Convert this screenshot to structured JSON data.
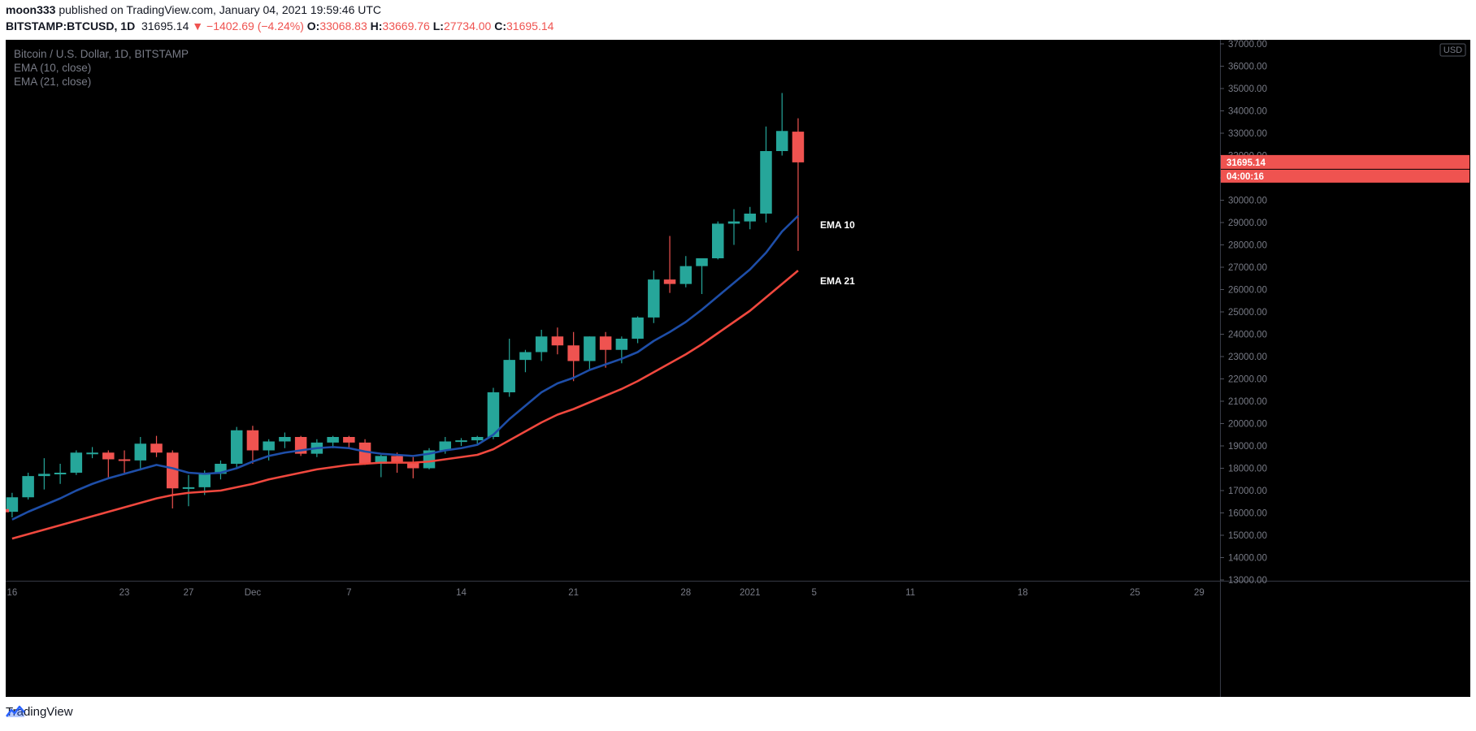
{
  "header": {
    "author": "moon333",
    "published_text": "published on TradingView.com, January 04, 2021 19:59:46 UTC"
  },
  "quote": {
    "symbol": "BITSTAMP:BTCUSD, 1D",
    "price": "31695.14",
    "change_arrow": "▼",
    "change": "−1402.69 (−4.24%)",
    "o_label": "O:",
    "o_value": "33068.83",
    "h_label": "H:",
    "h_value": "33669.76",
    "l_label": "L:",
    "l_value": "27734.00",
    "c_label": "C:",
    "c_value": "31695.14"
  },
  "legend": {
    "title": "Bitcoin / U.S. Dollar, 1D, BITSTAMP",
    "ema10": "EMA (10, close)",
    "ema21": "EMA (21, close)"
  },
  "footer": {
    "brand": "TradingView"
  },
  "colors": {
    "up": "#26a69a",
    "down": "#ef5350",
    "ema10": "#1e4ea8",
    "ema21": "#f0483e",
    "background": "#000000",
    "axis_text": "#787b86"
  },
  "chart_data": {
    "type": "candlestick",
    "currency": "USD",
    "ylim": [
      13000,
      37000
    ],
    "y_ticks": [
      13000,
      14000,
      15000,
      16000,
      17000,
      18000,
      19000,
      20000,
      21000,
      22000,
      23000,
      24000,
      25000,
      26000,
      27000,
      28000,
      29000,
      30000,
      31000,
      32000,
      33000,
      34000,
      35000,
      36000,
      37000
    ],
    "x_ticks": [
      {
        "day": 0,
        "label": "16"
      },
      {
        "day": 7,
        "label": "23"
      },
      {
        "day": 11,
        "label": "27"
      },
      {
        "day": 15,
        "label": "Dec"
      },
      {
        "day": 21,
        "label": "7"
      },
      {
        "day": 28,
        "label": "14"
      },
      {
        "day": 35,
        "label": "21"
      },
      {
        "day": 42,
        "label": "28"
      },
      {
        "day": 46,
        "label": "2021"
      },
      {
        "day": 50,
        "label": "5"
      },
      {
        "day": 56,
        "label": "11"
      },
      {
        "day": 63,
        "label": "18"
      },
      {
        "day": 70,
        "label": "25"
      },
      {
        "day": 74,
        "label": "29"
      }
    ],
    "x_range": [
      -0.4,
      75.3
    ],
    "last_price_label": "31695.14",
    "countdown_label": "04:00:16",
    "candles": [
      [
        16050,
        16900,
        15800,
        16700
      ],
      [
        16700,
        17800,
        16600,
        17650
      ],
      [
        17650,
        18450,
        17050,
        17750
      ],
      [
        17750,
        18200,
        17300,
        17800
      ],
      [
        17800,
        18800,
        17700,
        18700
      ],
      [
        18700,
        18950,
        18450,
        18700
      ],
      [
        18700,
        18800,
        17550,
        18400
      ],
      [
        18400,
        18800,
        17800,
        18350
      ],
      [
        18350,
        19400,
        17900,
        19100
      ],
      [
        19100,
        19450,
        18500,
        18700
      ],
      [
        18700,
        18800,
        16200,
        17100
      ],
      [
        17100,
        17700,
        16300,
        17150
      ],
      [
        17150,
        17900,
        16800,
        17750
      ],
      [
        17750,
        18350,
        17500,
        18200
      ],
      [
        18200,
        19850,
        18000,
        19700
      ],
      [
        19700,
        19900,
        18200,
        18800
      ],
      [
        18800,
        19300,
        18350,
        19200
      ],
      [
        19200,
        19600,
        18900,
        19400
      ],
      [
        19400,
        19450,
        18550,
        18650
      ],
      [
        18650,
        19300,
        18500,
        19150
      ],
      [
        19150,
        19450,
        18900,
        19400
      ],
      [
        19400,
        19450,
        18900,
        19150
      ],
      [
        19150,
        19300,
        18150,
        18200
      ],
      [
        18200,
        18600,
        17600,
        18550
      ],
      [
        18550,
        18700,
        17800,
        18250
      ],
      [
        18250,
        18500,
        17550,
        18000
      ],
      [
        18000,
        18900,
        17950,
        18800
      ],
      [
        18800,
        19400,
        18650,
        19200
      ],
      [
        19200,
        19350,
        19000,
        19250
      ],
      [
        19250,
        19450,
        19100,
        19400
      ],
      [
        19400,
        21600,
        19300,
        21400
      ],
      [
        21400,
        23800,
        21200,
        22850
      ],
      [
        22850,
        23300,
        22300,
        23200
      ],
      [
        23200,
        24200,
        22800,
        23900
      ],
      [
        23900,
        24300,
        23100,
        23500
      ],
      [
        23500,
        24100,
        21900,
        22800
      ],
      [
        22800,
        23900,
        22400,
        23900
      ],
      [
        23900,
        24100,
        22500,
        23300
      ],
      [
        23300,
        23900,
        22700,
        23800
      ],
      [
        23800,
        24800,
        23600,
        24750
      ],
      [
        24750,
        26850,
        24500,
        26450
      ],
      [
        26450,
        28400,
        25850,
        26250
      ],
      [
        26250,
        27500,
        26100,
        27050
      ],
      [
        27050,
        27400,
        25800,
        27400
      ],
      [
        27400,
        29050,
        27350,
        28950
      ],
      [
        28950,
        29600,
        28000,
        29050
      ],
      [
        29050,
        29700,
        28700,
        29400
      ],
      [
        29400,
        33300,
        29000,
        32200
      ],
      [
        32200,
        34800,
        32000,
        33100
      ],
      [
        33069,
        33670,
        27734,
        31695
      ]
    ],
    "series": [
      {
        "name": "EMA 10",
        "values": [
          15700,
          16050,
          16350,
          16650,
          17000,
          17300,
          17550,
          17750,
          17950,
          18150,
          18000,
          17800,
          17750,
          17800,
          18000,
          18300,
          18550,
          18700,
          18800,
          18900,
          18950,
          18900,
          18750,
          18650,
          18600,
          18550,
          18650,
          18800,
          18900,
          19050,
          19500,
          20200,
          20800,
          21400,
          21800,
          22050,
          22400,
          22650,
          22900,
          23200,
          23700,
          24100,
          24550,
          25100,
          25700,
          26300,
          26900,
          27650,
          28600,
          29300
        ]
      },
      {
        "name": "EMA 21",
        "values": [
          14850,
          15050,
          15250,
          15450,
          15650,
          15850,
          16050,
          16250,
          16450,
          16650,
          16800,
          16900,
          16950,
          17000,
          17150,
          17300,
          17500,
          17650,
          17800,
          17950,
          18050,
          18150,
          18200,
          18250,
          18250,
          18250,
          18300,
          18400,
          18500,
          18600,
          18850,
          19250,
          19650,
          20050,
          20400,
          20650,
          20950,
          21250,
          21550,
          21900,
          22300,
          22700,
          23100,
          23550,
          24050,
          24550,
          25050,
          25650,
          26250,
          26850
        ]
      }
    ],
    "annotations": [
      "EMA 10",
      "EMA 21"
    ]
  }
}
